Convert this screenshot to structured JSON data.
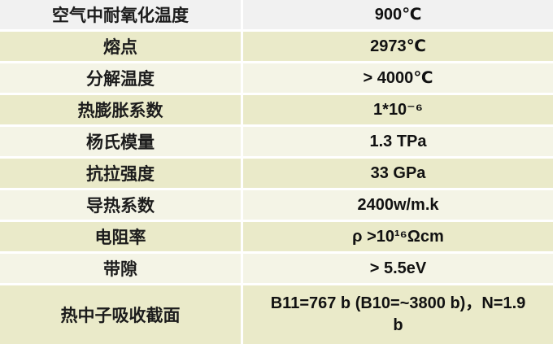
{
  "table": {
    "description_colors": {
      "header_row_bg": "#f1f1f1",
      "row_bg_dark_beige": "#eaeac9",
      "row_bg_light_beige": "#f4f4e6",
      "divider": "#ffffff",
      "label_text": "#1c1c1c",
      "value_text": "#111111"
    },
    "rows": [
      {
        "label": "空气中耐氧化温度",
        "value": "900℃"
      },
      {
        "label": "熔点",
        "value": "2973℃"
      },
      {
        "label": "分解温度",
        "value": "> 4000℃"
      },
      {
        "label": "热膨胀系数",
        "value": "1*10⁻⁶"
      },
      {
        "label": "杨氏模量",
        "value": "1.3 TPa"
      },
      {
        "label": "抗拉强度",
        "value": "33 GPa"
      },
      {
        "label": "导热系数",
        "value": "2400w/m.k"
      },
      {
        "label": "电阻率",
        "value": "ρ >10¹⁶Ωcm"
      },
      {
        "label": "带隙",
        "value": "> 5.5eV"
      },
      {
        "label": "热中子吸收截面",
        "value": "B11=767 b (B10=~3800 b)，N=1.9\nb"
      }
    ]
  }
}
